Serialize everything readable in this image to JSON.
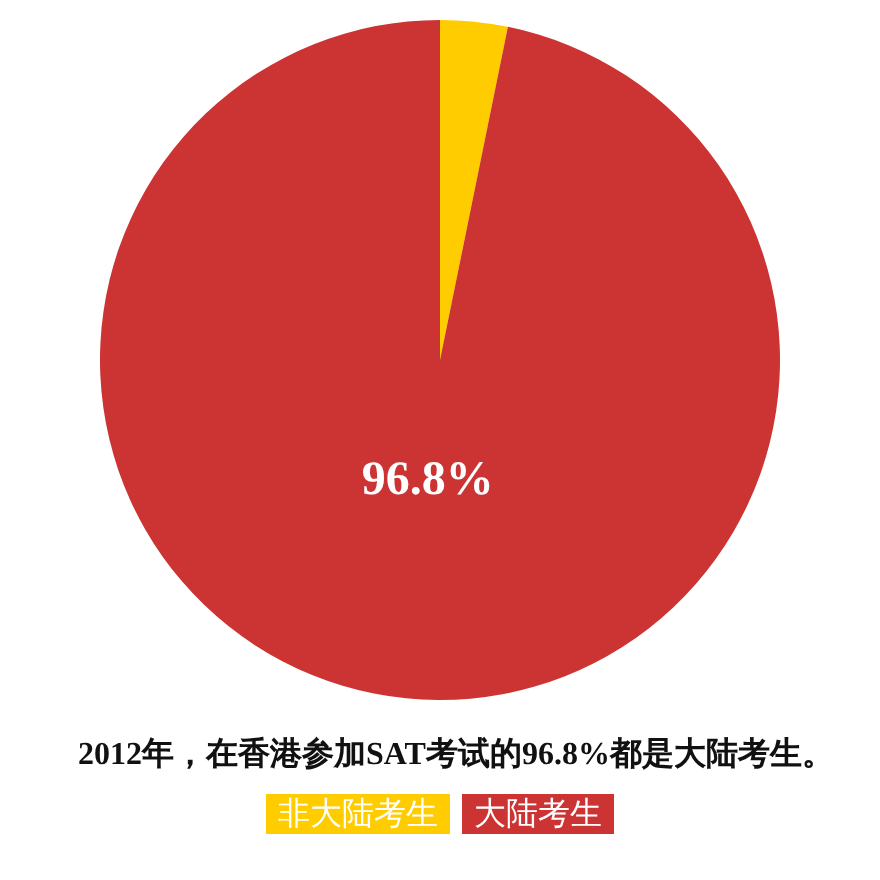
{
  "chart_data": {
    "type": "pie",
    "title": "2012年，在香港参加SAT考试的96.8%都是大陆考生。",
    "categories": [
      "非大陆考生",
      "大陆考生"
    ],
    "values": [
      3.2,
      96.8
    ],
    "colors": [
      "#ffcc00",
      "#cc3333"
    ],
    "value_labels": [
      null,
      "96.8%"
    ],
    "legend": "bottom"
  }
}
